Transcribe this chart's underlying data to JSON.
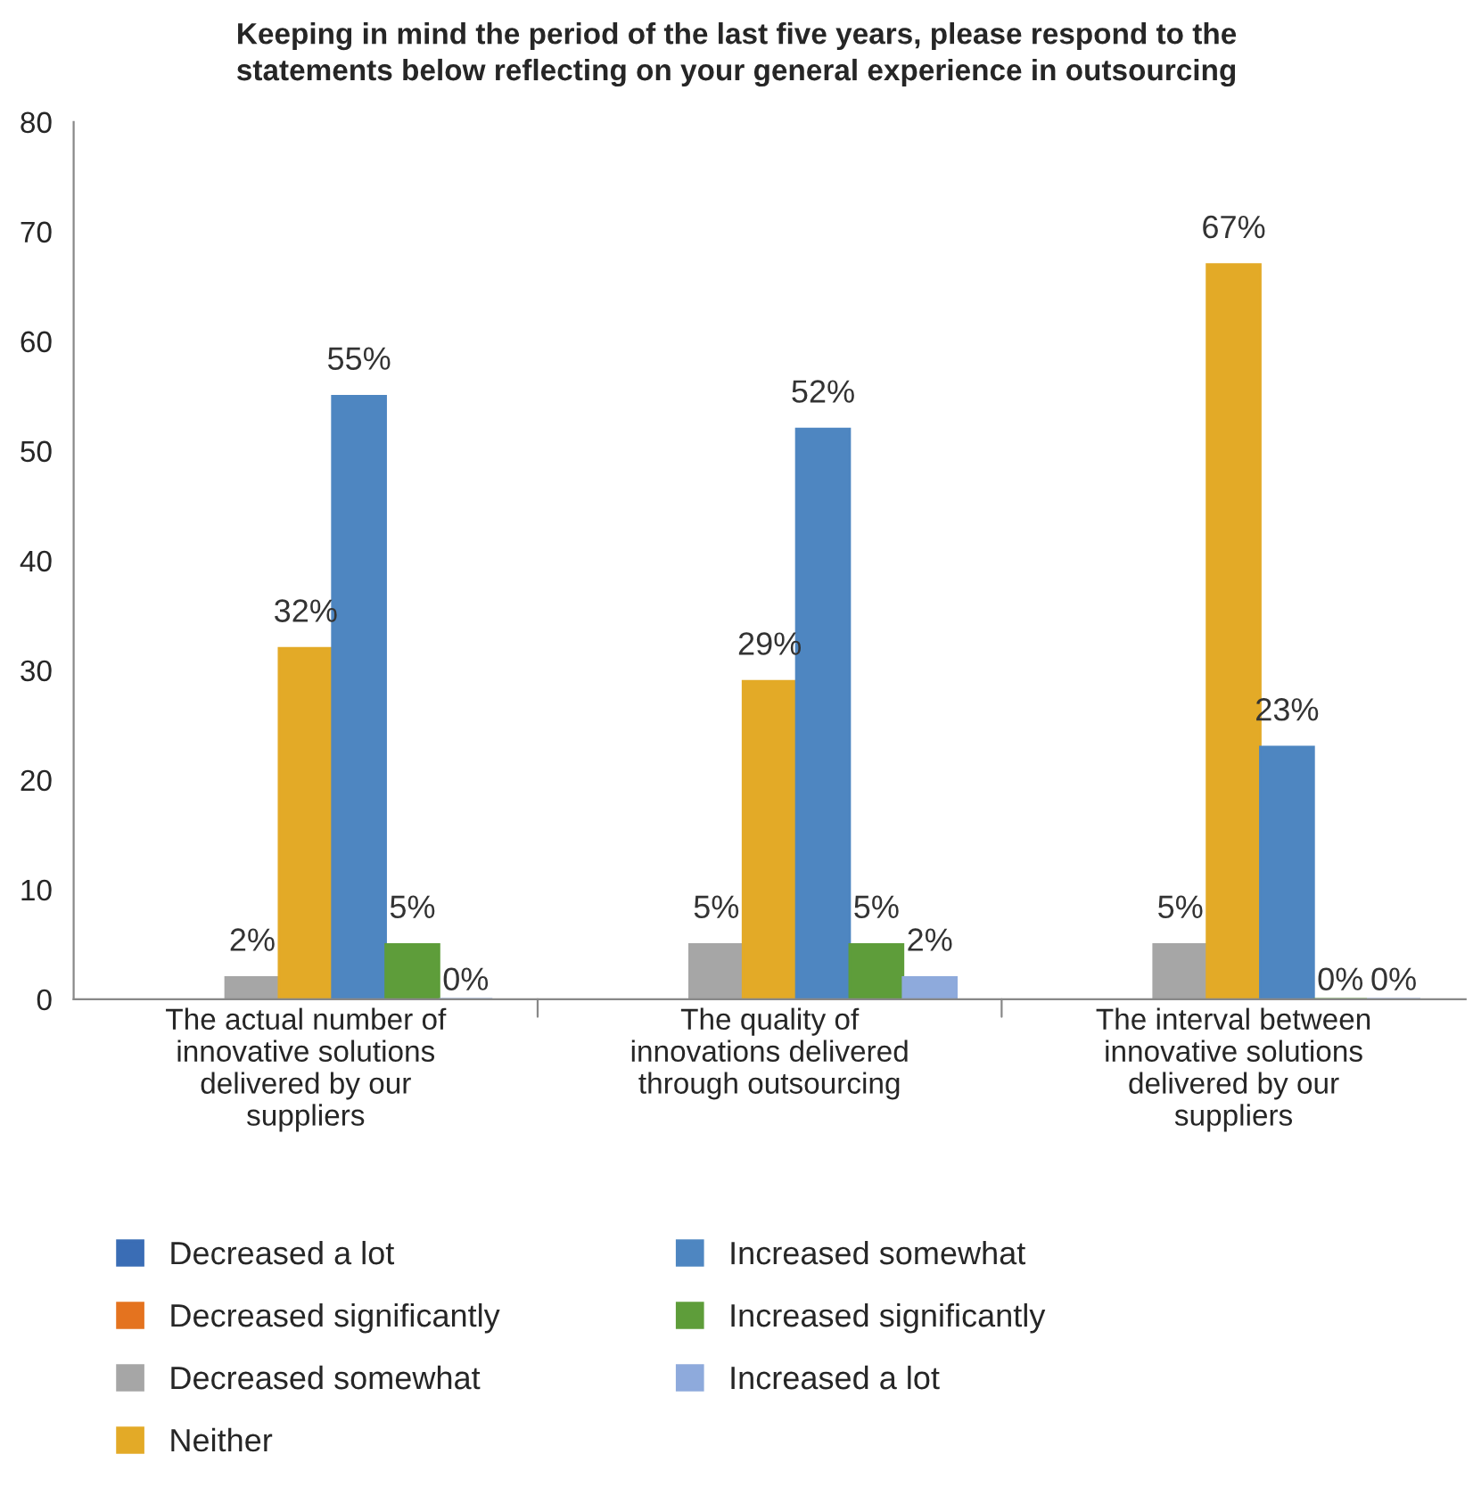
{
  "chart_data": {
    "type": "bar",
    "title": "Keeping in mind the period of the last five years, please respond to the statements below reflecting on your general experience in outsourcing",
    "categories": [
      "The actual number of innovative solutions delivered by our suppliers",
      "The quality of innovations delivered through outsourcing",
      "The interval between innovative solutions delivered by our suppliers"
    ],
    "series": [
      {
        "name": "Decreased a lot",
        "color": "#3a6db5",
        "values": [
          null,
          null,
          null
        ]
      },
      {
        "name": "Decreased significantly",
        "color": "#e4731f",
        "values": [
          null,
          null,
          null
        ]
      },
      {
        "name": "Decreased somewhat",
        "color": "#a6a6a6",
        "values": [
          2,
          5,
          5
        ],
        "value_labels": [
          "2%",
          "5%",
          "5%"
        ]
      },
      {
        "name": "Neither",
        "color": "#e3aa27",
        "values": [
          32,
          29,
          67
        ],
        "value_labels": [
          "32%",
          "29%",
          "67%"
        ]
      },
      {
        "name": "Increased somewhat",
        "color": "#4e86c1",
        "values": [
          55,
          52,
          23
        ],
        "value_labels": [
          "55%",
          "52%",
          "23%"
        ]
      },
      {
        "name": "Increased significantly",
        "color": "#5e9d3a",
        "values": [
          5,
          5,
          0
        ],
        "value_labels": [
          "5%",
          "5%",
          "0%"
        ]
      },
      {
        "name": "Increased a lot",
        "color": "#8eaadc",
        "values": [
          0,
          2,
          0
        ],
        "value_labels": [
          "0%",
          "2%",
          "0%"
        ]
      }
    ],
    "ylim": [
      0,
      80
    ],
    "yticks": [
      0,
      10,
      20,
      30,
      40,
      50,
      60,
      70,
      80
    ],
    "grid": false,
    "legend": "bottom"
  }
}
